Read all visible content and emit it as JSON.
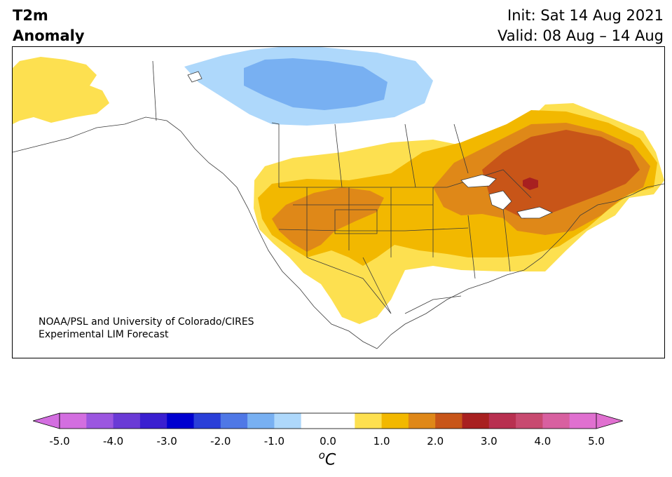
{
  "title": {
    "left_line1": "T2m",
    "left_line2": "Anomaly",
    "right_line1": "Init: Sat 14 Aug 2021",
    "right_line2": "Valid: 08 Aug – 14 Aug"
  },
  "credit": {
    "line1": "NOAA/PSL and University of Colorado/CIRES",
    "line2": "Experimental LIM Forecast"
  },
  "colorbar": {
    "ticks": [
      "-5.0",
      "-4.0",
      "-3.0",
      "-2.0",
      "-1.0",
      "0.0",
      "1.0",
      "2.0",
      "3.0",
      "4.0",
      "5.0"
    ],
    "unit_sup": "o",
    "unit_main": "C",
    "colors": [
      "#d36ee0",
      "#9b56e0",
      "#6a3ad6",
      "#3a1fd0",
      "#0000d0",
      "#2a3fd8",
      "#4f78e6",
      "#78b0f2",
      "#aed8fb",
      "#ffffff",
      "#ffffff",
      "#fde050",
      "#f2b800",
      "#df8818",
      "#c85518",
      "#a82020",
      "#b83050",
      "#c84a70",
      "#d860a0",
      "#e070d0"
    ],
    "min_end_color": "#d36ee0",
    "max_end_color": "#e070d0"
  },
  "regions": {
    "alaska_warm": "#fde050",
    "arctic_cool_light": "#aed8fb",
    "arctic_cool_mid": "#78b0f2",
    "warm_1": "#fde050",
    "warm_2": "#f2b800",
    "warm_3": "#df8818",
    "warm_4": "#c85518",
    "warm_5": "#a82020"
  }
}
